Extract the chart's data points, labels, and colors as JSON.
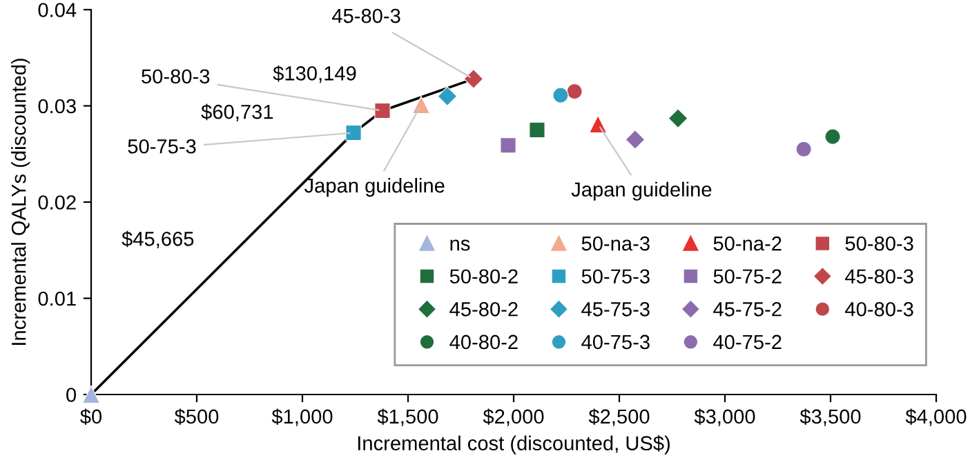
{
  "chart_data": {
    "type": "scatter",
    "xlabel": "Incremental cost (discounted, US$)",
    "ylabel": "Incremental QALYs (discounted)",
    "xlim": [
      0,
      4000
    ],
    "xticks": [
      {
        "value": 0,
        "label": "$0"
      },
      {
        "value": 500,
        "label": "$500"
      },
      {
        "value": 1000,
        "label": "$1,000"
      },
      {
        "value": 1500,
        "label": "$1,500"
      },
      {
        "value": 2000,
        "label": "$2,000"
      },
      {
        "value": 2500,
        "label": "$2,500"
      },
      {
        "value": 3000,
        "label": "$3,000"
      },
      {
        "value": 3500,
        "label": "$3,500"
      },
      {
        "value": 4000,
        "label": "$4,000"
      }
    ],
    "ylim": [
      0,
      0.04
    ],
    "yticks": [
      0,
      0.01,
      0.02,
      0.03,
      0.04
    ],
    "grid": false,
    "legend": "bottom right",
    "series": [
      {
        "type": "line",
        "color": "#000000",
        "marker": "none",
        "x": [
          0,
          1242,
          1379,
          1810
        ],
        "values": [
          0,
          0.0272,
          0.0295,
          0.0328
        ]
      },
      {
        "name": "ns",
        "color": "#a3b5df",
        "marker": "triangle",
        "x": [
          0
        ],
        "values": [
          0
        ]
      },
      {
        "name": "50-na-3",
        "color": "#f2a98e",
        "marker": "triangle",
        "x": [
          1562
        ],
        "values": [
          0.0301
        ]
      },
      {
        "name": "50-na-2",
        "color": "#e8302c",
        "marker": "triangle",
        "x": [
          2399
        ],
        "values": [
          0.0281
        ]
      },
      {
        "name": "50-80-3",
        "color": "#c1464b",
        "marker": "square",
        "x": [
          1379
        ],
        "values": [
          0.0295
        ]
      },
      {
        "name": "50-80-2",
        "color": "#1f6e3c",
        "marker": "square",
        "x": [
          2111
        ],
        "values": [
          0.0275
        ]
      },
      {
        "name": "50-75-3",
        "color": "#2e9fc2",
        "marker": "square",
        "x": [
          1242
        ],
        "values": [
          0.0272
        ]
      },
      {
        "name": "50-75-2",
        "color": "#8d6cae",
        "marker": "square",
        "x": [
          1974
        ],
        "values": [
          0.0259
        ]
      },
      {
        "name": "45-80-3",
        "color": "#c1464b",
        "marker": "diamond",
        "x": [
          1810
        ],
        "values": [
          0.0328
        ]
      },
      {
        "name": "45-80-2",
        "color": "#1f6e3c",
        "marker": "diamond",
        "x": [
          2778
        ],
        "values": [
          0.0287
        ]
      },
      {
        "name": "45-75-3",
        "color": "#2e9fc2",
        "marker": "diamond",
        "x": [
          1686
        ],
        "values": [
          0.031
        ]
      },
      {
        "name": "45-75-2",
        "color": "#8d6cae",
        "marker": "diamond",
        "x": [
          2575
        ],
        "values": [
          0.0265
        ]
      },
      {
        "name": "40-80-3",
        "color": "#c1464b",
        "marker": "circle",
        "x": [
          2288
        ],
        "values": [
          0.0315
        ]
      },
      {
        "name": "40-80-2",
        "color": "#1f6e3c",
        "marker": "circle",
        "x": [
          3510
        ],
        "values": [
          0.0268
        ]
      },
      {
        "name": "40-75-3",
        "color": "#2e9fc2",
        "marker": "circle",
        "x": [
          2222
        ],
        "values": [
          0.0311
        ]
      },
      {
        "name": "40-75-2",
        "color": "#8d6cae",
        "marker": "circle",
        "x": [
          3373
        ],
        "values": [
          0.0255
        ]
      }
    ],
    "annotations": [
      {
        "text": "45-80-3",
        "x": 1810,
        "y": 0.0328
      },
      {
        "text": "50-80-3",
        "x": 1379,
        "y": 0.0295
      },
      {
        "text": "50-75-3",
        "x": 1242,
        "y": 0.0272
      },
      {
        "text": "Japan guideline",
        "x": 1562,
        "y": 0.0301
      },
      {
        "text": "Japan guideline",
        "x": 2399,
        "y": 0.0281
      },
      "$45,665",
      "$60,731",
      "$130,149"
    ]
  }
}
